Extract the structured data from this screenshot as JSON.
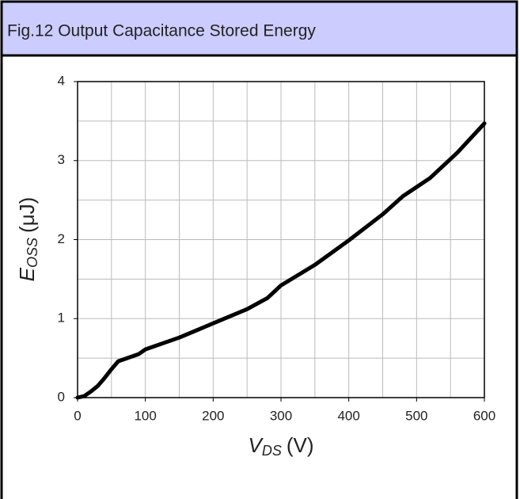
{
  "chart_data": {
    "type": "line",
    "title": "Fig.12 Output Capacitance Stored Energy",
    "x_label": {
      "main": "V",
      "sub": "DS",
      "unit": "(V)"
    },
    "y_label": {
      "main": "E",
      "sub": "OSS",
      "unit": "(μJ)"
    },
    "xlim": [
      0,
      600
    ],
    "ylim": [
      0,
      4
    ],
    "xticks": [
      0,
      100,
      200,
      300,
      400,
      500,
      600
    ],
    "yticks": [
      0,
      1,
      2,
      3,
      4
    ],
    "xgrid": [
      50,
      100,
      150,
      200,
      250,
      300,
      350,
      400,
      450,
      500,
      550
    ],
    "ygrid": [
      0.5,
      1,
      1.5,
      2,
      2.5,
      3,
      3.5
    ],
    "grid": true,
    "series": [
      {
        "name": "Eoss",
        "color": "#000000",
        "x": [
          0,
          10,
          20,
          30,
          40,
          50,
          60,
          70,
          80,
          90,
          100,
          150,
          200,
          250,
          280,
          300,
          350,
          400,
          450,
          480,
          520,
          560,
          600
        ],
        "values": [
          0,
          0.02,
          0.08,
          0.15,
          0.25,
          0.36,
          0.46,
          0.49,
          0.52,
          0.55,
          0.61,
          0.76,
          0.94,
          1.12,
          1.26,
          1.42,
          1.68,
          1.99,
          2.32,
          2.55,
          2.78,
          3.1,
          3.47
        ]
      }
    ]
  }
}
